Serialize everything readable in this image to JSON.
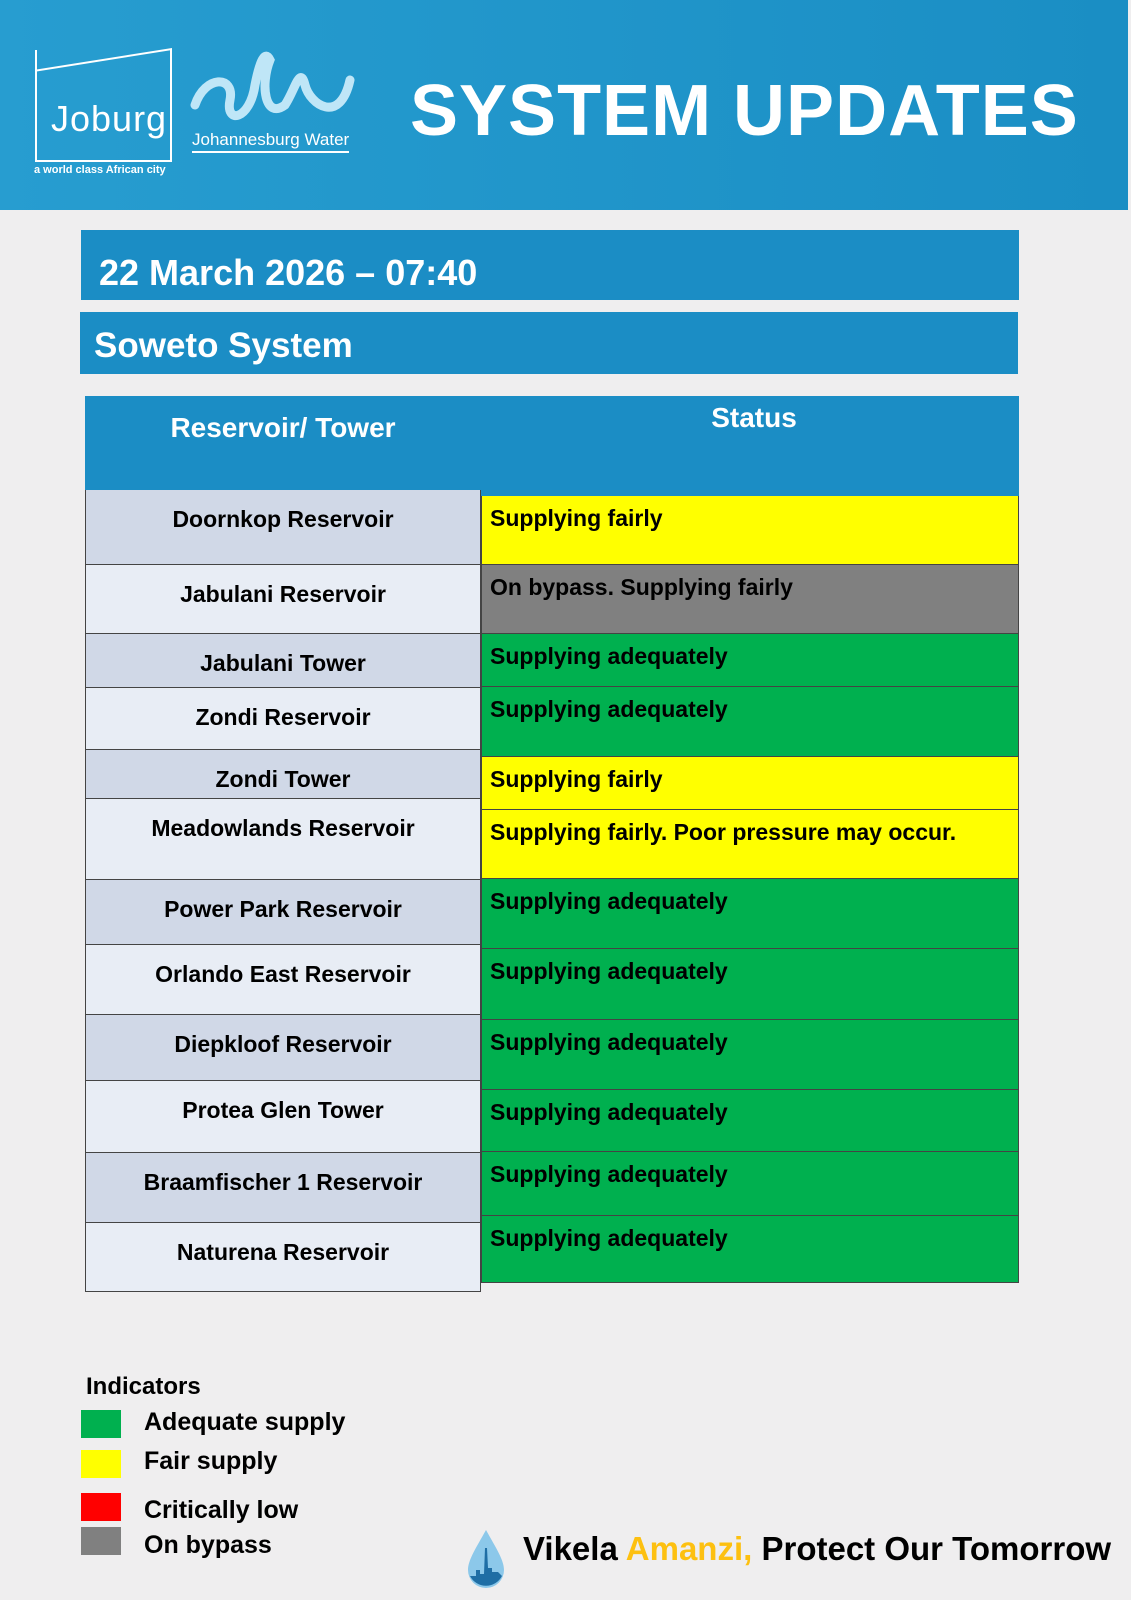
{
  "header": {
    "org": "Joburg",
    "tagline": "a world class African city",
    "water": "Johannesburg Water",
    "title": "SYSTEM UPDATES"
  },
  "date": "22 March 2026 – 07:40",
  "system": "Soweto System",
  "table": {
    "headers": [
      "Reservoir/ Tower",
      "Status"
    ],
    "rows": [
      {
        "name": "Doornkop Reservoir",
        "status": "Supplying fairly",
        "color": "#ffff00"
      },
      {
        "name": "Jabulani Reservoir",
        "status": "On bypass. Supplying fairly",
        "color": "#808080"
      },
      {
        "name": "Jabulani Tower",
        "status": "Supplying adequately",
        "color": "#00b04f"
      },
      {
        "name": "Zondi Reservoir",
        "status": "Supplying adequately",
        "color": "#00b04f"
      },
      {
        "name": "Zondi Tower",
        "status": "Supplying fairly",
        "color": "#ffff00"
      },
      {
        "name": "Meadowlands Reservoir",
        "status": "Supplying fairly. Poor pressure may occur.",
        "color": "#ffff00"
      },
      {
        "name": "Power Park Reservoir",
        "status": "Supplying adequately",
        "color": "#00b04f"
      },
      {
        "name": "Orlando East Reservoir",
        "status": "Supplying adequately",
        "color": "#00b04f"
      },
      {
        "name": "Diepkloof Reservoir",
        "status": "Supplying adequately",
        "color": "#00b04f"
      },
      {
        "name": "Protea Glen Tower",
        "status": "Supplying adequately",
        "color": "#00b04f"
      },
      {
        "name": "Braamfischer 1 Reservoir",
        "status": "Supplying adequately",
        "color": "#00b04f"
      },
      {
        "name": "Naturena Reservoir",
        "status": "Supplying adequately",
        "color": "#00b04f"
      }
    ]
  },
  "indicators": {
    "title": "Indicators",
    "items": [
      {
        "label": "Adequate supply",
        "color": "#00b04f"
      },
      {
        "label": "Fair supply",
        "color": "#ffff00"
      },
      {
        "label": "Critically low",
        "color": "#ff0000"
      },
      {
        "label": "On bypass",
        "color": "#808080"
      }
    ]
  },
  "slogan": {
    "part1": "Vikela ",
    "part2": "Amanzi,",
    "part3": " Protect Our Tomorrow",
    "accent": "#fdc010"
  }
}
